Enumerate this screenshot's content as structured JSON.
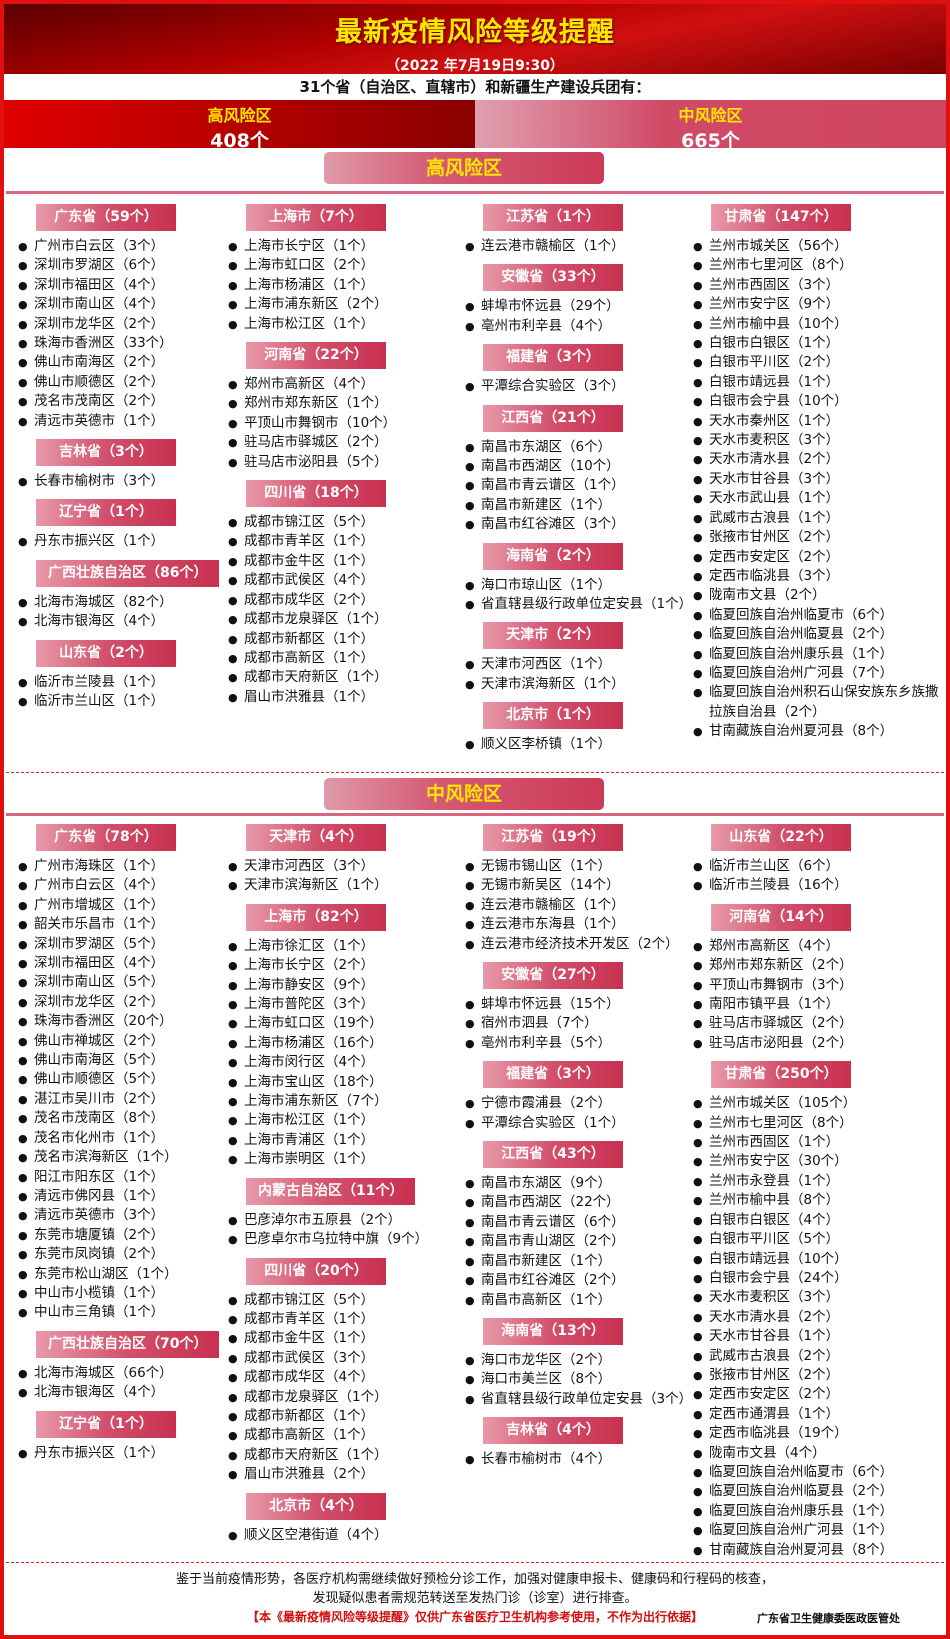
{
  "title": "最新疫情风险等级提醒",
  "date": "（2022 年7月19日9:30）",
  "intro": "31个省（自治区、直辖市）和新疆生产建设兵团有：",
  "summary": {
    "high_label": "高风险区",
    "high_count": "408个",
    "mid_label": "中风险区",
    "mid_count": "665个"
  },
  "colors": {
    "border": "#e01010",
    "title": "#ffe600",
    "pill": "#cc3a58"
  },
  "high": {
    "title": "高风险区",
    "columns": [
      [
        {
          "t": "广东省（59个）",
          "i": [
            "广州市白云区（3个）",
            "深圳市罗湖区（6个）",
            "深圳市福田区（4个）",
            "深圳市南山区（4个）",
            "深圳市龙华区（2个）",
            "珠海市香洲区（33个）",
            "佛山市南海区（2个）",
            "佛山市顺德区（2个）",
            "茂名市茂南区（2个）",
            "清远市英德市（1个）"
          ]
        },
        {
          "t": "吉林省（3个）",
          "i": [
            "长春市榆树市（3个）"
          ]
        },
        {
          "t": "辽宁省（1个）",
          "i": [
            "丹东市振兴区（1个）"
          ]
        },
        {
          "t": "广西壮族自治区（86个）",
          "i": [
            "北海市海城区（82个）",
            "北海市银海区（4个）"
          ]
        },
        {
          "t": "山东省（2个）",
          "i": [
            "临沂市兰陵县（1个）",
            "临沂市兰山区（1个）"
          ]
        }
      ],
      [
        {
          "t": "上海市（7个）",
          "i": [
            "上海市长宁区（1个）",
            "上海市虹口区（2个）",
            "上海市杨浦区（1个）",
            "上海市浦东新区（2个）",
            "上海市松江区（1个）"
          ]
        },
        {
          "t": "河南省（22个）",
          "i": [
            "郑州市高新区（4个）",
            "郑州市郑东新区（1个）",
            "平顶山市舞钢市（10个）",
            "驻马店市驿城区（2个）",
            "驻马店市泌阳县（5个）"
          ]
        },
        {
          "t": "四川省（18个）",
          "i": [
            "成都市锦江区（5个）",
            "成都市青羊区（1个）",
            "成都市金牛区（1个）",
            "成都市武侯区（4个）",
            "成都市成华区（2个）",
            "成都市龙泉驿区（1个）",
            "成都市新都区（1个）",
            "成都市高新区（1个）",
            "成都市天府新区（1个）",
            "眉山市洪雅县（1个）"
          ]
        }
      ],
      [
        {
          "t": "江苏省（1个）",
          "i": [
            "连云港市赣榆区（1个）"
          ]
        },
        {
          "t": "安徽省（33个）",
          "i": [
            "蚌埠市怀远县（29个）",
            "亳州市利辛县（4个）"
          ]
        },
        {
          "t": "福建省（3个）",
          "i": [
            "平潭综合实验区（3个）"
          ]
        },
        {
          "t": "江西省（21个）",
          "i": [
            "南昌市东湖区（6个）",
            "南昌市西湖区（10个）",
            "南昌市青云谱区（1个）",
            "南昌市新建区（1个）",
            "南昌市红谷滩区（3个）"
          ]
        },
        {
          "t": "海南省（2个）",
          "i": [
            "海口市琼山区（1个）",
            "省直辖县级行政单位定安县（1个）"
          ]
        },
        {
          "t": "天津市（2个）",
          "i": [
            "天津市河西区（1个）",
            "天津市滨海新区（1个）"
          ]
        },
        {
          "t": "北京市（1个）",
          "i": [
            "顺义区李桥镇（1个）"
          ]
        }
      ],
      [
        {
          "t": "甘肃省（147个）",
          "i": [
            "兰州市城关区（56个）",
            "兰州市七里河区（8个）",
            "兰州市西固区（3个）",
            "兰州市安宁区（9个）",
            "兰州市榆中县（10个）",
            "白银市白银区（1个）",
            "白银市平川区（2个）",
            "白银市靖远县（1个）",
            "白银市会宁县（10个）",
            "天水市秦州区（1个）",
            "天水市麦积区（3个）",
            "天水市清水县（2个）",
            "天水市甘谷县（3个）",
            "天水市武山县（1个）",
            "武威市古浪县（1个）",
            "张掖市甘州区（2个）",
            "定西市安定区（2个）",
            "定西市临洮县（3个）",
            "陇南市文县（2个）",
            "临夏回族自治州临夏市（6个）",
            "临夏回族自治州临夏县（2个）",
            "临夏回族自治州康乐县（1个）",
            "临夏回族自治州广河县（7个）",
            "临夏回族自治州积石山保安族东乡族撒拉族自治县（2个）",
            "甘南藏族自治州夏河县（8个）"
          ]
        }
      ]
    ]
  },
  "mid": {
    "title": "中风险区",
    "columns": [
      [
        {
          "t": "广东省（78个）",
          "i": [
            "广州市海珠区（1个）",
            "广州市白云区（4个）",
            "广州市增城区（1个）",
            "韶关市乐昌市（1个）",
            "深圳市罗湖区（5个）",
            "深圳市福田区（4个）",
            "深圳市南山区（5个）",
            "深圳市龙华区（2个）",
            "珠海市香洲区（20个）",
            "佛山市禅城区（2个）",
            "佛山市南海区（5个）",
            "佛山市顺德区（5个）",
            "湛江市吴川市（2个）",
            "茂名市茂南区（8个）",
            "茂名市化州市（1个）",
            "茂名市滨海新区（1个）",
            "阳江市阳东区（1个）",
            "清远市佛冈县（1个）",
            "清远市英德市（3个）",
            "东莞市塘厦镇（2个）",
            "东莞市凤岗镇（2个）",
            "东莞市松山湖区（1个）",
            "中山市小榄镇（1个）",
            "中山市三角镇（1个）"
          ]
        },
        {
          "t": "广西壮族自治区（70个）",
          "i": [
            "北海市海城区（66个）",
            "北海市银海区（4个）"
          ]
        },
        {
          "t": "辽宁省（1个）",
          "i": [
            "丹东市振兴区（1个）"
          ]
        }
      ],
      [
        {
          "t": "天津市（4个）",
          "i": [
            "天津市河西区（3个）",
            "天津市滨海新区（1个）"
          ]
        },
        {
          "t": "上海市（82个）",
          "i": [
            "上海市徐汇区（1个）",
            "上海市长宁区（2个）",
            "上海市静安区（9个）",
            "上海市普陀区（3个）",
            "上海市虹口区（19个）",
            "上海市杨浦区（16个）",
            "上海市闵行区（4个）",
            "上海市宝山区（18个）",
            "上海市浦东新区（7个）",
            "上海市松江区（1个）",
            "上海市青浦区（1个）",
            "上海市崇明区（1个）"
          ]
        },
        {
          "t": "内蒙古自治区（11个）",
          "i": [
            "巴彦淖尔市五原县（2个）",
            "巴彦卓尔市乌拉特中旗（9个）"
          ]
        },
        {
          "t": "四川省（20个）",
          "i": [
            "成都市锦江区（5个）",
            "成都市青羊区（1个）",
            "成都市金牛区（1个）",
            "成都市武侯区（3个）",
            "成都市成华区（4个）",
            "成都市龙泉驿区（1个）",
            "成都市新都区（1个）",
            "成都市高新区（1个）",
            "成都市天府新区（1个）",
            "眉山市洪雅县（2个）"
          ]
        },
        {
          "t": "北京市（4个）",
          "i": [
            "顺义区空港街道（4个）"
          ]
        }
      ],
      [
        {
          "t": "江苏省（19个）",
          "i": [
            "无锡市锡山区（1个）",
            "无锡市新吴区（14个）",
            "连云港市赣榆区（1个）",
            "连云港市东海县（1个）",
            "连云港市经济技术开发区（2个）"
          ]
        },
        {
          "t": "安徽省（27个）",
          "i": [
            "蚌埠市怀远县（15个）",
            "宿州市泗县（7个）",
            "亳州市利辛县（5个）"
          ]
        },
        {
          "t": "福建省（3个）",
          "i": [
            "宁德市霞浦县（2个）",
            "平潭综合实验区（1个）"
          ]
        },
        {
          "t": "江西省（43个）",
          "i": [
            "南昌市东湖区（9个）",
            "南昌市西湖区（22个）",
            "南昌市青云谱区（6个）",
            "南昌市青山湖区（2个）",
            "南昌市新建区（1个）",
            "南昌市红谷滩区（2个）",
            "南昌市高新区（1个）"
          ]
        },
        {
          "t": "海南省（13个）",
          "i": [
            "海口市龙华区（2个）",
            "海口市美兰区（8个）",
            "省直辖县级行政单位定安县（3个）"
          ]
        },
        {
          "t": "吉林省（4个）",
          "i": [
            "长春市榆树市（4个）"
          ]
        }
      ],
      [
        {
          "t": "山东省（22个）",
          "i": [
            "临沂市兰山区（6个）",
            "临沂市兰陵县（16个）"
          ]
        },
        {
          "t": "河南省（14个）",
          "i": [
            "郑州市高新区（4个）",
            "郑州市郑东新区（2个）",
            "平顶山市舞钢市（3个）",
            "南阳市镇平县（1个）",
            "驻马店市驿城区（2个）",
            "驻马店市泌阳县（2个）"
          ]
        },
        {
          "t": "甘肃省（250个）",
          "i": [
            "兰州市城关区（105个）",
            "兰州市七里河区（8个）",
            "兰州市西固区（1个）",
            "兰州市安宁区（30个）",
            "兰州市永登县（1个）",
            "兰州市榆中县（8个）",
            "白银市白银区（4个）",
            "白银市平川区（5个）",
            "白银市靖远县（10个）",
            "白银市会宁县（24个）",
            "天水市麦积区（3个）",
            "天水市清水县（2个）",
            "天水市甘谷县（1个）",
            "武威市古浪县（2个）",
            "张掖市甘州区（2个）",
            "定西市安定区（2个）",
            "定西市通渭县（1个）",
            "定西市临洮县（19个）",
            "陇南市文县（4个）",
            "临夏回族自治州临夏市（6个）",
            "临夏回族自治州临夏县（2个）",
            "临夏回族自治州康乐县（1个）",
            "临夏回族自治州广河县（1个）",
            "甘南藏族自治州夏河县（8个）"
          ]
        }
      ]
    ]
  },
  "footer": {
    "line1": "鉴于当前疫情形势，各医疗机构需继续做好预检分诊工作，加强对健康申报卡、健康码和行程码的核查，",
    "line2": "发现疑似患者需规范转送至发热门诊（诊室）进行排查。",
    "notice": "【本《最新疫情风险等级提醒》仅供广东省医疗卫生机构参考使用，不作为出行依据】",
    "org": "广东省卫生健康委医政医管处"
  }
}
